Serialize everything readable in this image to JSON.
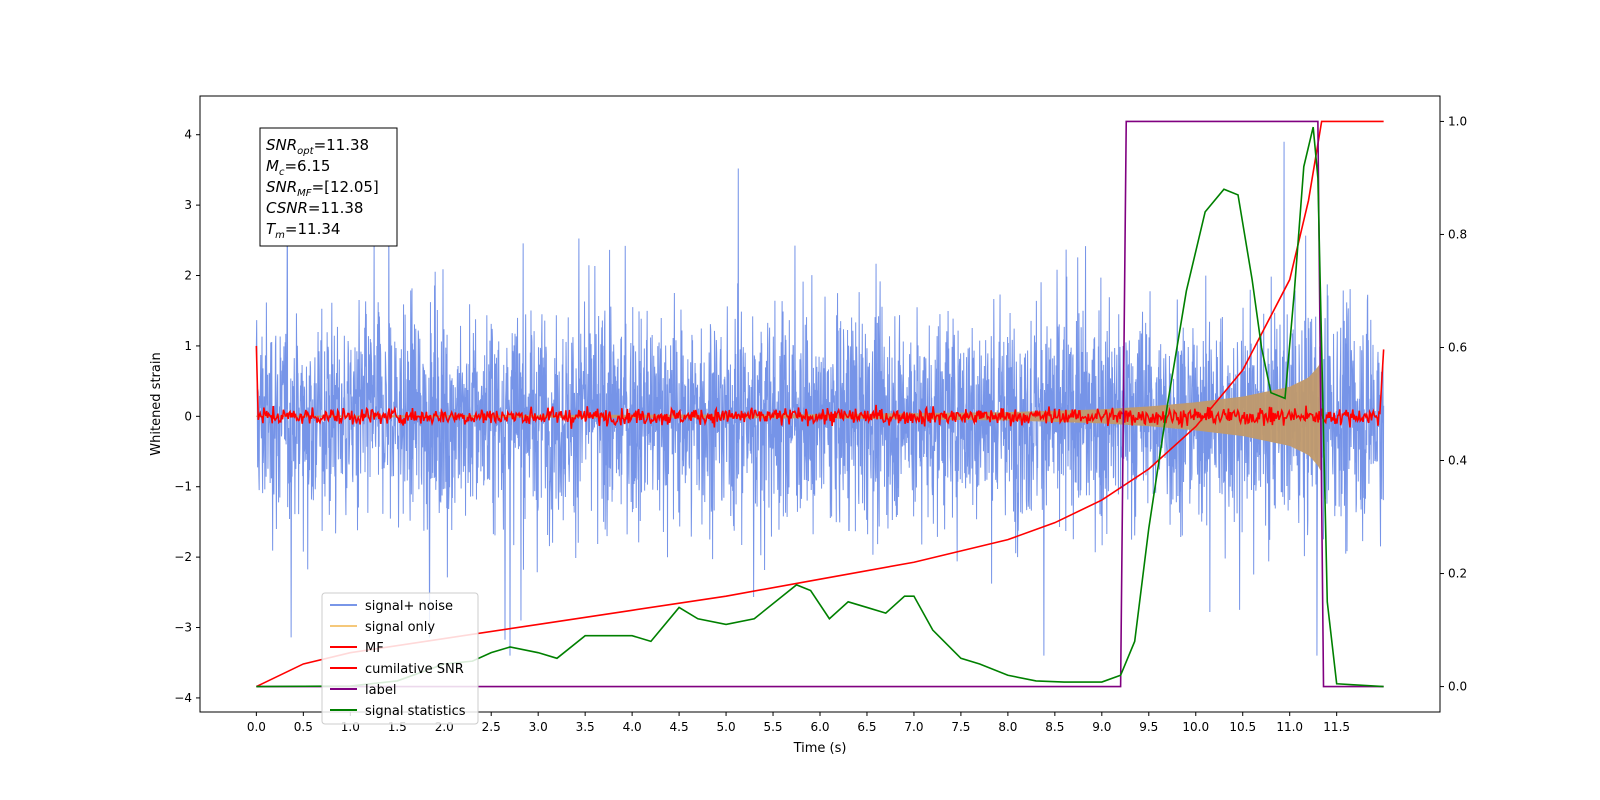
{
  "chart_data": {
    "type": "line",
    "xlabel": "Time (s)",
    "ylabel": "Whitened strain",
    "xlim": [
      -0.6,
      12.6
    ],
    "ylim": [
      -4.2,
      4.55
    ],
    "y2lim": [
      -0.045,
      1.045
    ],
    "x_ticks": [
      "0.0",
      "0.5",
      "1.0",
      "1.5",
      "2.0",
      "2.5",
      "3.0",
      "3.5",
      "4.0",
      "4.5",
      "5.0",
      "5.5",
      "6.0",
      "6.5",
      "7.0",
      "7.5",
      "8.0",
      "8.5",
      "9.0",
      "9.5",
      "10.0",
      "10.5",
      "11.0",
      "11.5"
    ],
    "y_ticks": [
      "4",
      "3",
      "2",
      "1",
      "0",
      "−1",
      "−2",
      "−3",
      "−4"
    ],
    "y2_ticks": [
      "1.0",
      "0.8",
      "0.6",
      "0.4",
      "0.2",
      "0.0"
    ],
    "grid": false,
    "legend_position": "lower-left",
    "annotation": {
      "lines": [
        {
          "base": "SNR",
          "sub": "opt",
          "rest": "=11.38"
        },
        {
          "base": "M",
          "sub": "c",
          "rest": "=6.15"
        },
        {
          "base": "SNR",
          "sub": "MF",
          "rest": "=[12.05]"
        },
        {
          "base": "CSNR",
          "sub": "",
          "rest": "=11.38"
        },
        {
          "base": "T",
          "sub": "m",
          "rest": "=11.34"
        }
      ]
    },
    "series": [
      {
        "name": "signal+ noise",
        "axis": "left",
        "color": "#6a8be6",
        "description": "whitened data, noise amplitude about ±1.8 with spikes up to ~3.9, from t=0 to t=12"
      },
      {
        "name": "signal only",
        "axis": "left",
        "color": "#f5c87a",
        "envelope": {
          "x": [
            0,
            6,
            8,
            9,
            9.5,
            10,
            10.5,
            11,
            11.2,
            11.3,
            11.34
          ],
          "y": [
            0.01,
            0.03,
            0.06,
            0.1,
            0.14,
            0.2,
            0.28,
            0.42,
            0.55,
            0.7,
            0.8
          ]
        }
      },
      {
        "name": "MF",
        "axis": "left",
        "color": "#ff0000",
        "description": "matched filter output near 0 (±0.2), spike to ~1.0 at t=0 and ~0.95 at t=12"
      },
      {
        "name": "cumilative SNR",
        "axis": "right",
        "color": "#ff0000",
        "x": [
          0,
          0.5,
          1,
          2,
          3,
          4,
          5,
          6,
          7,
          8,
          8.5,
          9,
          9.5,
          10,
          10.5,
          11,
          11.2,
          11.34,
          12
        ],
        "y": [
          0,
          0.04,
          0.06,
          0.085,
          0.11,
          0.135,
          0.16,
          0.19,
          0.22,
          0.26,
          0.29,
          0.33,
          0.385,
          0.46,
          0.56,
          0.72,
          0.86,
          1.0,
          1.0
        ]
      },
      {
        "name": "label",
        "axis": "right",
        "color": "#800080",
        "x": [
          0,
          9.2,
          9.26,
          11.3,
          11.36,
          12
        ],
        "y": [
          0,
          0,
          1,
          1,
          0,
          0
        ]
      },
      {
        "name": "signal statistics",
        "axis": "right",
        "color": "#008000",
        "x": [
          0,
          1,
          1.5,
          2.0,
          2.3,
          2.5,
          2.7,
          3.0,
          3.2,
          3.5,
          3.7,
          4.0,
          4.2,
          4.5,
          4.7,
          5.0,
          5.3,
          5.6,
          5.75,
          5.9,
          6.1,
          6.3,
          6.5,
          6.7,
          6.9,
          7.0,
          7.2,
          7.5,
          7.7,
          8.0,
          8.3,
          8.6,
          9.0,
          9.2,
          9.35,
          9.5,
          9.7,
          9.9,
          10.1,
          10.3,
          10.45,
          10.6,
          10.7,
          10.8,
          10.95,
          11.05,
          11.15,
          11.25,
          11.3,
          11.4,
          11.5,
          12
        ],
        "y": [
          0,
          0.001,
          0.01,
          0.04,
          0.045,
          0.06,
          0.07,
          0.06,
          0.05,
          0.09,
          0.09,
          0.09,
          0.08,
          0.14,
          0.12,
          0.11,
          0.12,
          0.16,
          0.18,
          0.17,
          0.12,
          0.15,
          0.14,
          0.13,
          0.16,
          0.16,
          0.1,
          0.05,
          0.04,
          0.02,
          0.01,
          0.008,
          0.008,
          0.02,
          0.08,
          0.28,
          0.5,
          0.7,
          0.84,
          0.88,
          0.87,
          0.72,
          0.6,
          0.52,
          0.51,
          0.7,
          0.92,
          0.99,
          0.9,
          0.15,
          0.005,
          0.0
        ]
      }
    ]
  }
}
